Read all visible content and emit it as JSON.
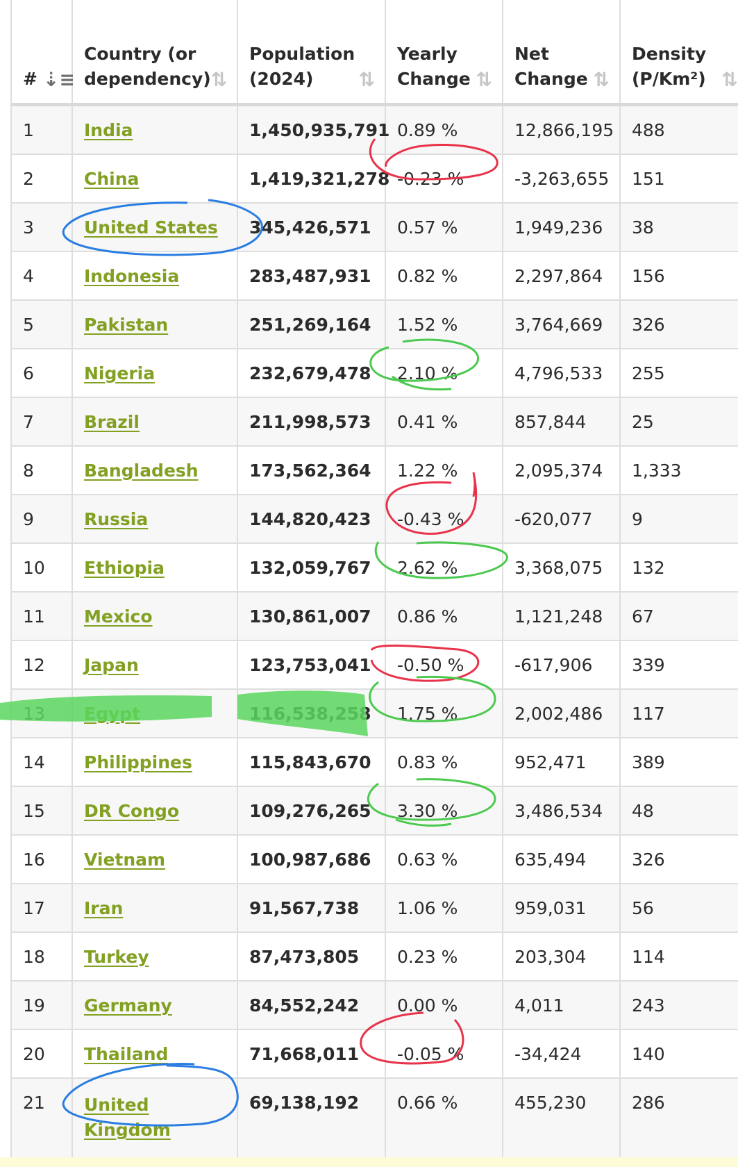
{
  "table": {
    "headers": [
      {
        "line1": "#",
        "line2": "",
        "sort_icon": "sort-amount-desc-icon"
      },
      {
        "line1": "Country (or",
        "line2": "dependency)",
        "sort_icon": "sort-icon"
      },
      {
        "line1": "Population",
        "line2": "(2024)",
        "sort_icon": "sort-icon"
      },
      {
        "line1": "Yearly",
        "line2": "Change",
        "sort_icon": "sort-icon"
      },
      {
        "line1": "Net",
        "line2": "Change",
        "sort_icon": "sort-icon"
      },
      {
        "line1": "Density",
        "line2": "(P/Km²)",
        "sort_icon": "sort-icon"
      }
    ],
    "rows": [
      {
        "rank": "1",
        "country": "India",
        "population": "1,450,935,791",
        "yearly_change": "0.89 %",
        "net_change": "12,866,195",
        "density": "488"
      },
      {
        "rank": "2",
        "country": "China",
        "population": "1,419,321,278",
        "yearly_change": "-0.23 %",
        "net_change": "-3,263,655",
        "density": "151"
      },
      {
        "rank": "3",
        "country": "United States",
        "population": "345,426,571",
        "yearly_change": "0.57 %",
        "net_change": "1,949,236",
        "density": "38"
      },
      {
        "rank": "4",
        "country": "Indonesia",
        "population": "283,487,931",
        "yearly_change": "0.82 %",
        "net_change": "2,297,864",
        "density": "156"
      },
      {
        "rank": "5",
        "country": "Pakistan",
        "population": "251,269,164",
        "yearly_change": "1.52 %",
        "net_change": "3,764,669",
        "density": "326"
      },
      {
        "rank": "6",
        "country": "Nigeria",
        "population": "232,679,478",
        "yearly_change": "2.10 %",
        "net_change": "4,796,533",
        "density": "255"
      },
      {
        "rank": "7",
        "country": "Brazil",
        "population": "211,998,573",
        "yearly_change": "0.41 %",
        "net_change": "857,844",
        "density": "25"
      },
      {
        "rank": "8",
        "country": "Bangladesh",
        "population": "173,562,364",
        "yearly_change": "1.22 %",
        "net_change": "2,095,374",
        "density": "1,333"
      },
      {
        "rank": "9",
        "country": "Russia",
        "population": "144,820,423",
        "yearly_change": "-0.43 %",
        "net_change": "-620,077",
        "density": "9"
      },
      {
        "rank": "10",
        "country": "Ethiopia",
        "population": "132,059,767",
        "yearly_change": "2.62 %",
        "net_change": "3,368,075",
        "density": "132"
      },
      {
        "rank": "11",
        "country": "Mexico",
        "population": "130,861,007",
        "yearly_change": "0.86 %",
        "net_change": "1,121,248",
        "density": "67"
      },
      {
        "rank": "12",
        "country": "Japan",
        "population": "123,753,041",
        "yearly_change": "-0.50 %",
        "net_change": "-617,906",
        "density": "339"
      },
      {
        "rank": "13",
        "country": "Egypt",
        "population": "116,538,258",
        "yearly_change": "1.75 %",
        "net_change": "2,002,486",
        "density": "117"
      },
      {
        "rank": "14",
        "country": "Philippines",
        "population": "115,843,670",
        "yearly_change": "0.83 %",
        "net_change": "952,471",
        "density": "389"
      },
      {
        "rank": "15",
        "country": "DR Congo",
        "population": "109,276,265",
        "yearly_change": "3.30 %",
        "net_change": "3,486,534",
        "density": "48"
      },
      {
        "rank": "16",
        "country": "Vietnam",
        "population": "100,987,686",
        "yearly_change": "0.63 %",
        "net_change": "635,494",
        "density": "326"
      },
      {
        "rank": "17",
        "country": "Iran",
        "population": "91,567,738",
        "yearly_change": "1.06 %",
        "net_change": "959,031",
        "density": "56"
      },
      {
        "rank": "18",
        "country": "Turkey",
        "population": "87,473,805",
        "yearly_change": "0.23 %",
        "net_change": "203,304",
        "density": "114"
      },
      {
        "rank": "19",
        "country": "Germany",
        "population": "84,552,242",
        "yearly_change": "0.00 %",
        "net_change": "4,011",
        "density": "243"
      },
      {
        "rank": "20",
        "country": "Thailand",
        "population": "71,668,011",
        "yearly_change": "-0.05 %",
        "net_change": "-34,424",
        "density": "140"
      },
      {
        "rank": "21",
        "country": "United Kingdom",
        "population": "69,138,192",
        "yearly_change": "0.66 %",
        "net_change": "455,230",
        "density": "286"
      }
    ]
  },
  "annotations": {
    "colors": {
      "red_circle": "#e8334a",
      "green_circle": "#4cc94f",
      "blue_circle": "#2a7de1",
      "green_highlighter": "#5bd65e"
    }
  }
}
